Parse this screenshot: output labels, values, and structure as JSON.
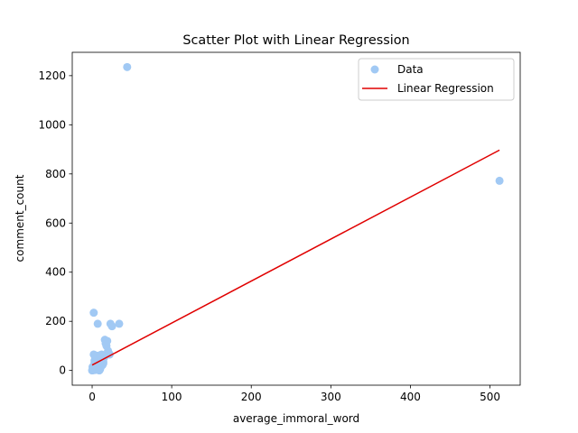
{
  "chart_data": {
    "type": "scatter",
    "title": "Scatter Plot with Linear Regression",
    "xlabel": "average_immoral_word",
    "ylabel": "comment_count",
    "xlim": [
      -25,
      538
    ],
    "ylim": [
      -60,
      1295
    ],
    "xticks": [
      0,
      100,
      200,
      300,
      400,
      500
    ],
    "yticks": [
      0,
      200,
      400,
      600,
      800,
      1000,
      1200
    ],
    "grid": false,
    "legend": {
      "placement": "top-right",
      "entries": [
        "Data",
        "Linear Regression"
      ]
    },
    "colors": {
      "scatter": "#a1c9f4",
      "regression": "#e00000"
    },
    "series": [
      {
        "name": "Data",
        "type": "scatter",
        "points": [
          [
            0,
            0
          ],
          [
            0.5,
            2
          ],
          [
            1,
            4
          ],
          [
            1.5,
            1
          ],
          [
            2,
            6
          ],
          [
            2.5,
            3
          ],
          [
            3,
            8
          ],
          [
            1,
            10
          ],
          [
            0.5,
            14
          ],
          [
            2,
            18
          ],
          [
            3,
            22
          ],
          [
            4,
            2
          ],
          [
            4.5,
            12
          ],
          [
            5,
            5
          ],
          [
            5.5,
            16
          ],
          [
            6,
            9
          ],
          [
            6.5,
            25
          ],
          [
            7,
            3
          ],
          [
            7.5,
            30
          ],
          [
            8,
            14
          ],
          [
            8.5,
            7
          ],
          [
            9,
            20
          ],
          [
            9.5,
            35
          ],
          [
            10,
            11
          ],
          [
            3,
            40
          ],
          [
            4,
            50
          ],
          [
            5,
            45
          ],
          [
            6,
            60
          ],
          [
            2,
            65
          ],
          [
            7,
            55
          ],
          [
            8,
            42
          ],
          [
            9,
            48
          ],
          [
            10,
            62
          ],
          [
            11,
            30
          ],
          [
            12,
            38
          ],
          [
            13,
            44
          ],
          [
            14,
            28
          ],
          [
            15,
            52
          ],
          [
            16,
            58
          ],
          [
            14,
            35
          ],
          [
            12,
            65
          ],
          [
            11,
            15
          ],
          [
            13,
            22
          ],
          [
            9,
            0
          ],
          [
            10,
            5
          ],
          [
            3,
            32
          ],
          [
            5,
            28
          ],
          [
            7,
            18
          ],
          [
            2,
            235
          ],
          [
            7,
            190
          ],
          [
            16,
            125
          ],
          [
            17,
            110
          ],
          [
            18,
            100
          ],
          [
            19,
            120
          ],
          [
            20,
            80
          ],
          [
            21,
            70
          ],
          [
            22,
            65
          ],
          [
            23,
            190
          ],
          [
            25,
            180
          ],
          [
            34,
            190
          ],
          [
            44,
            1235
          ],
          [
            512,
            772
          ]
        ]
      },
      {
        "name": "Linear Regression",
        "type": "line",
        "x": [
          0,
          512
        ],
        "y": [
          22,
          897
        ]
      }
    ]
  }
}
